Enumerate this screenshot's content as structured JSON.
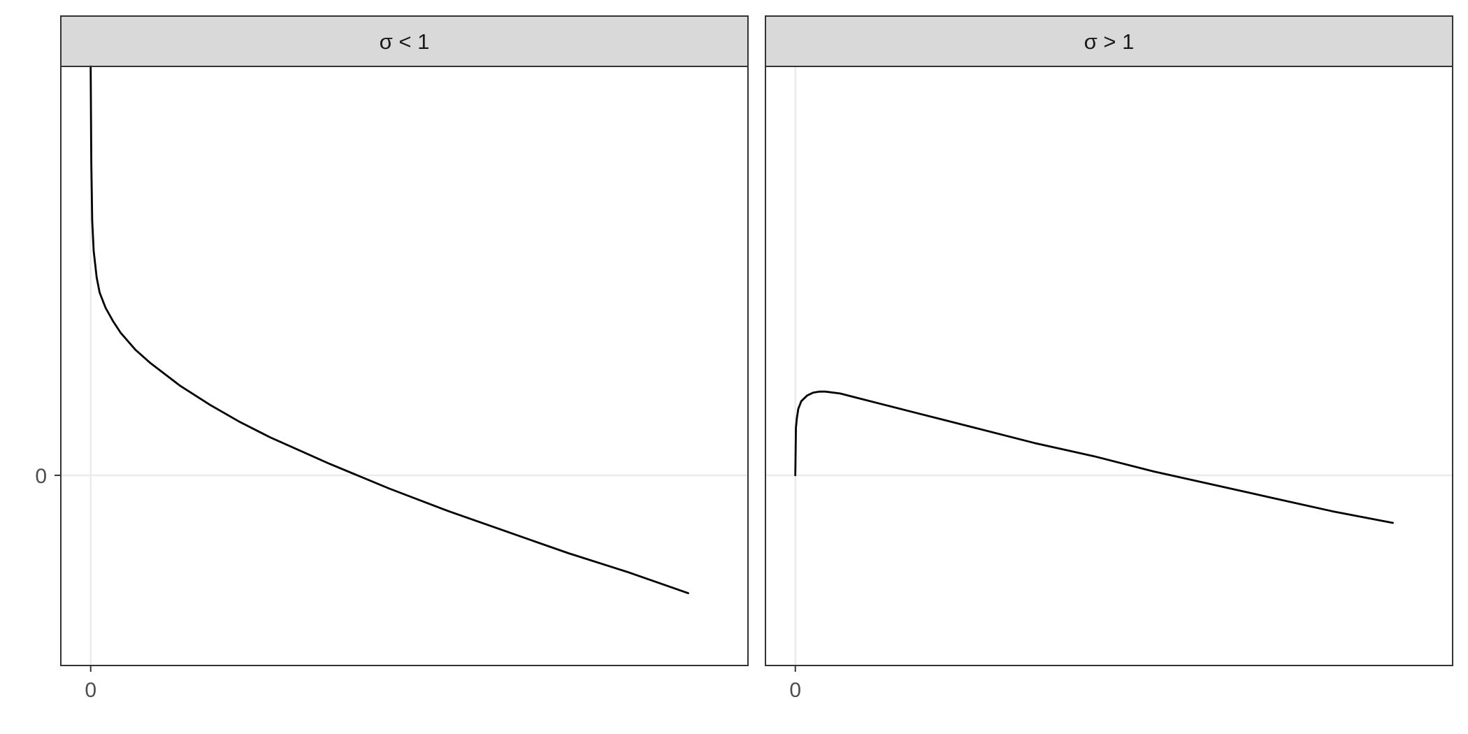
{
  "chart_data": [
    {
      "type": "line",
      "strip_label": "σ < 1",
      "title": "",
      "xlabel": "",
      "ylabel": "",
      "x_ticks": [
        "0"
      ],
      "y_ticks": [
        "0"
      ],
      "xlim": [
        -0.1,
        2.2
      ],
      "ylim": [
        -1.0,
        2.15
      ],
      "grid": true,
      "legend": "none",
      "series": [
        {
          "x": [
            0.0,
            0.002,
            0.005,
            0.01,
            0.02,
            0.03,
            0.05,
            0.075,
            0.1,
            0.15,
            0.2,
            0.3,
            0.4,
            0.5,
            0.6,
            0.8,
            1.0,
            1.2,
            1.4,
            1.6,
            1.8,
            2.0
          ],
          "values": [
            2.15,
            1.65,
            1.34,
            1.18,
            1.04,
            0.96,
            0.88,
            0.81,
            0.75,
            0.66,
            0.59,
            0.47,
            0.37,
            0.28,
            0.2,
            0.06,
            -0.07,
            -0.19,
            -0.3,
            -0.41,
            -0.51,
            -0.62
          ]
        }
      ]
    },
    {
      "type": "line",
      "strip_label": "σ > 1",
      "title": "",
      "xlabel": "",
      "ylabel": "",
      "x_ticks": [
        "0"
      ],
      "y_ticks": [],
      "xlim": [
        -0.1,
        2.2
      ],
      "ylim": [
        -1.0,
        2.15
      ],
      "grid": true,
      "legend": "none",
      "series": [
        {
          "x": [
            0.0,
            0.002,
            0.005,
            0.01,
            0.02,
            0.04,
            0.06,
            0.08,
            0.1,
            0.15,
            0.2,
            0.3,
            0.4,
            0.5,
            0.6,
            0.8,
            1.0,
            1.2,
            1.4,
            1.6,
            1.8,
            2.0
          ],
          "values": [
            0.0,
            0.25,
            0.3,
            0.35,
            0.39,
            0.42,
            0.435,
            0.44,
            0.44,
            0.43,
            0.41,
            0.37,
            0.33,
            0.29,
            0.25,
            0.17,
            0.1,
            0.02,
            -0.05,
            -0.12,
            -0.19,
            -0.25
          ]
        }
      ]
    }
  ]
}
